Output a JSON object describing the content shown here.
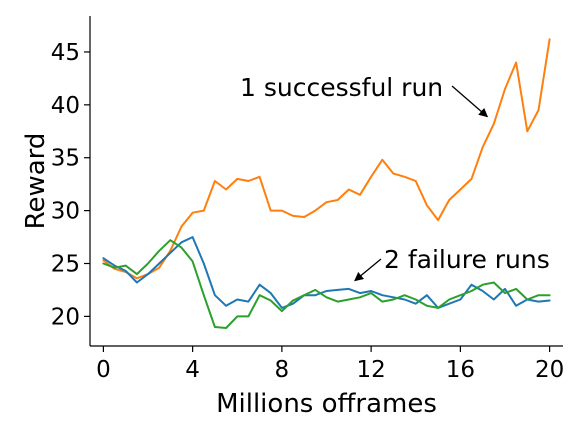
{
  "chart_data": {
    "type": "line",
    "title": "",
    "xlabel": "Millions offrames",
    "ylabel": "Reward",
    "xlim": [
      -0.6,
      20.6
    ],
    "ylim": [
      17.2,
      48.4
    ],
    "xticks": [
      0,
      4,
      8,
      12,
      16,
      20
    ],
    "yticks": [
      20,
      25,
      30,
      35,
      40,
      45
    ],
    "grid": false,
    "colors": {
      "orange": "#ff7f0e",
      "blue": "#1f77b4",
      "green": "#2ca02c"
    },
    "series": [
      {
        "color": "#ff7f0e",
        "x": [
          0,
          0.5,
          1,
          1.5,
          2,
          2.5,
          3,
          3.5,
          4,
          4.5,
          5,
          5.5,
          6,
          6.5,
          7,
          7.5,
          8,
          8.5,
          9,
          9.5,
          10,
          10.5,
          11,
          11.5,
          12,
          12.5,
          13,
          13.5,
          14,
          14.5,
          15,
          15.5,
          16,
          16.5,
          17,
          17.5,
          18,
          18.5,
          19,
          19.5,
          20
        ],
        "values": [
          25.3,
          24.5,
          24.2,
          23.6,
          24.0,
          24.6,
          26.2,
          28.5,
          29.8,
          30.0,
          32.8,
          32.0,
          33.0,
          32.8,
          33.2,
          30.0,
          30.0,
          29.5,
          29.4,
          30.0,
          30.8,
          31.0,
          32.0,
          31.5,
          33.2,
          34.8,
          33.5,
          33.2,
          32.8,
          30.5,
          29.1,
          31.0,
          32.0,
          33.0,
          36.0,
          38.2,
          41.5,
          44.0,
          37.5,
          39.5,
          46.2
        ]
      },
      {
        "color": "#1f77b4",
        "x": [
          0,
          0.5,
          1,
          1.5,
          2,
          2.5,
          3,
          3.5,
          4,
          4.5,
          5,
          5.5,
          6,
          6.5,
          7,
          7.5,
          8,
          8.5,
          9,
          9.5,
          10,
          10.5,
          11,
          11.5,
          12,
          12.5,
          13,
          13.5,
          14,
          14.5,
          15,
          15.5,
          16,
          16.5,
          17,
          17.5,
          18,
          18.5,
          19,
          19.5,
          20
        ],
        "values": [
          25.5,
          24.8,
          24.3,
          23.2,
          24.0,
          25.0,
          26.0,
          27.0,
          27.5,
          25.0,
          22.0,
          21.0,
          21.6,
          21.4,
          23.0,
          22.2,
          20.8,
          21.2,
          22.0,
          22.0,
          22.4,
          22.5,
          22.6,
          22.2,
          22.4,
          22.0,
          21.8,
          21.6,
          21.2,
          22.0,
          20.8,
          21.2,
          21.6,
          23.0,
          22.4,
          21.6,
          22.6,
          21.0,
          21.6,
          21.4,
          21.5
        ]
      },
      {
        "color": "#2ca02c",
        "x": [
          0,
          0.5,
          1,
          1.5,
          2,
          2.5,
          3,
          3.5,
          4,
          4.5,
          5,
          5.5,
          6,
          6.5,
          7,
          7.5,
          8,
          8.5,
          9,
          9.5,
          10,
          10.5,
          11,
          11.5,
          12,
          12.5,
          13,
          13.5,
          14,
          14.5,
          15,
          15.5,
          16,
          16.5,
          17,
          17.5,
          18,
          18.5,
          19,
          19.5,
          20
        ],
        "values": [
          25.0,
          24.6,
          24.8,
          24.0,
          25.0,
          26.2,
          27.2,
          26.5,
          25.2,
          22.0,
          19.0,
          18.9,
          20.0,
          20.0,
          22.0,
          21.5,
          20.5,
          21.5,
          22.0,
          22.5,
          21.8,
          21.4,
          21.6,
          21.8,
          22.2,
          21.4,
          21.6,
          22.0,
          21.6,
          21.0,
          20.8,
          21.6,
          22.0,
          22.4,
          23.0,
          23.2,
          22.2,
          22.6,
          21.6,
          22.0,
          22.0
        ]
      }
    ],
    "annotations": [
      {
        "text": "1 successful run",
        "target": [
          17.3,
          38.5
        ]
      },
      {
        "text": "2 failure runs",
        "target": [
          11.0,
          23.0
        ]
      }
    ]
  }
}
